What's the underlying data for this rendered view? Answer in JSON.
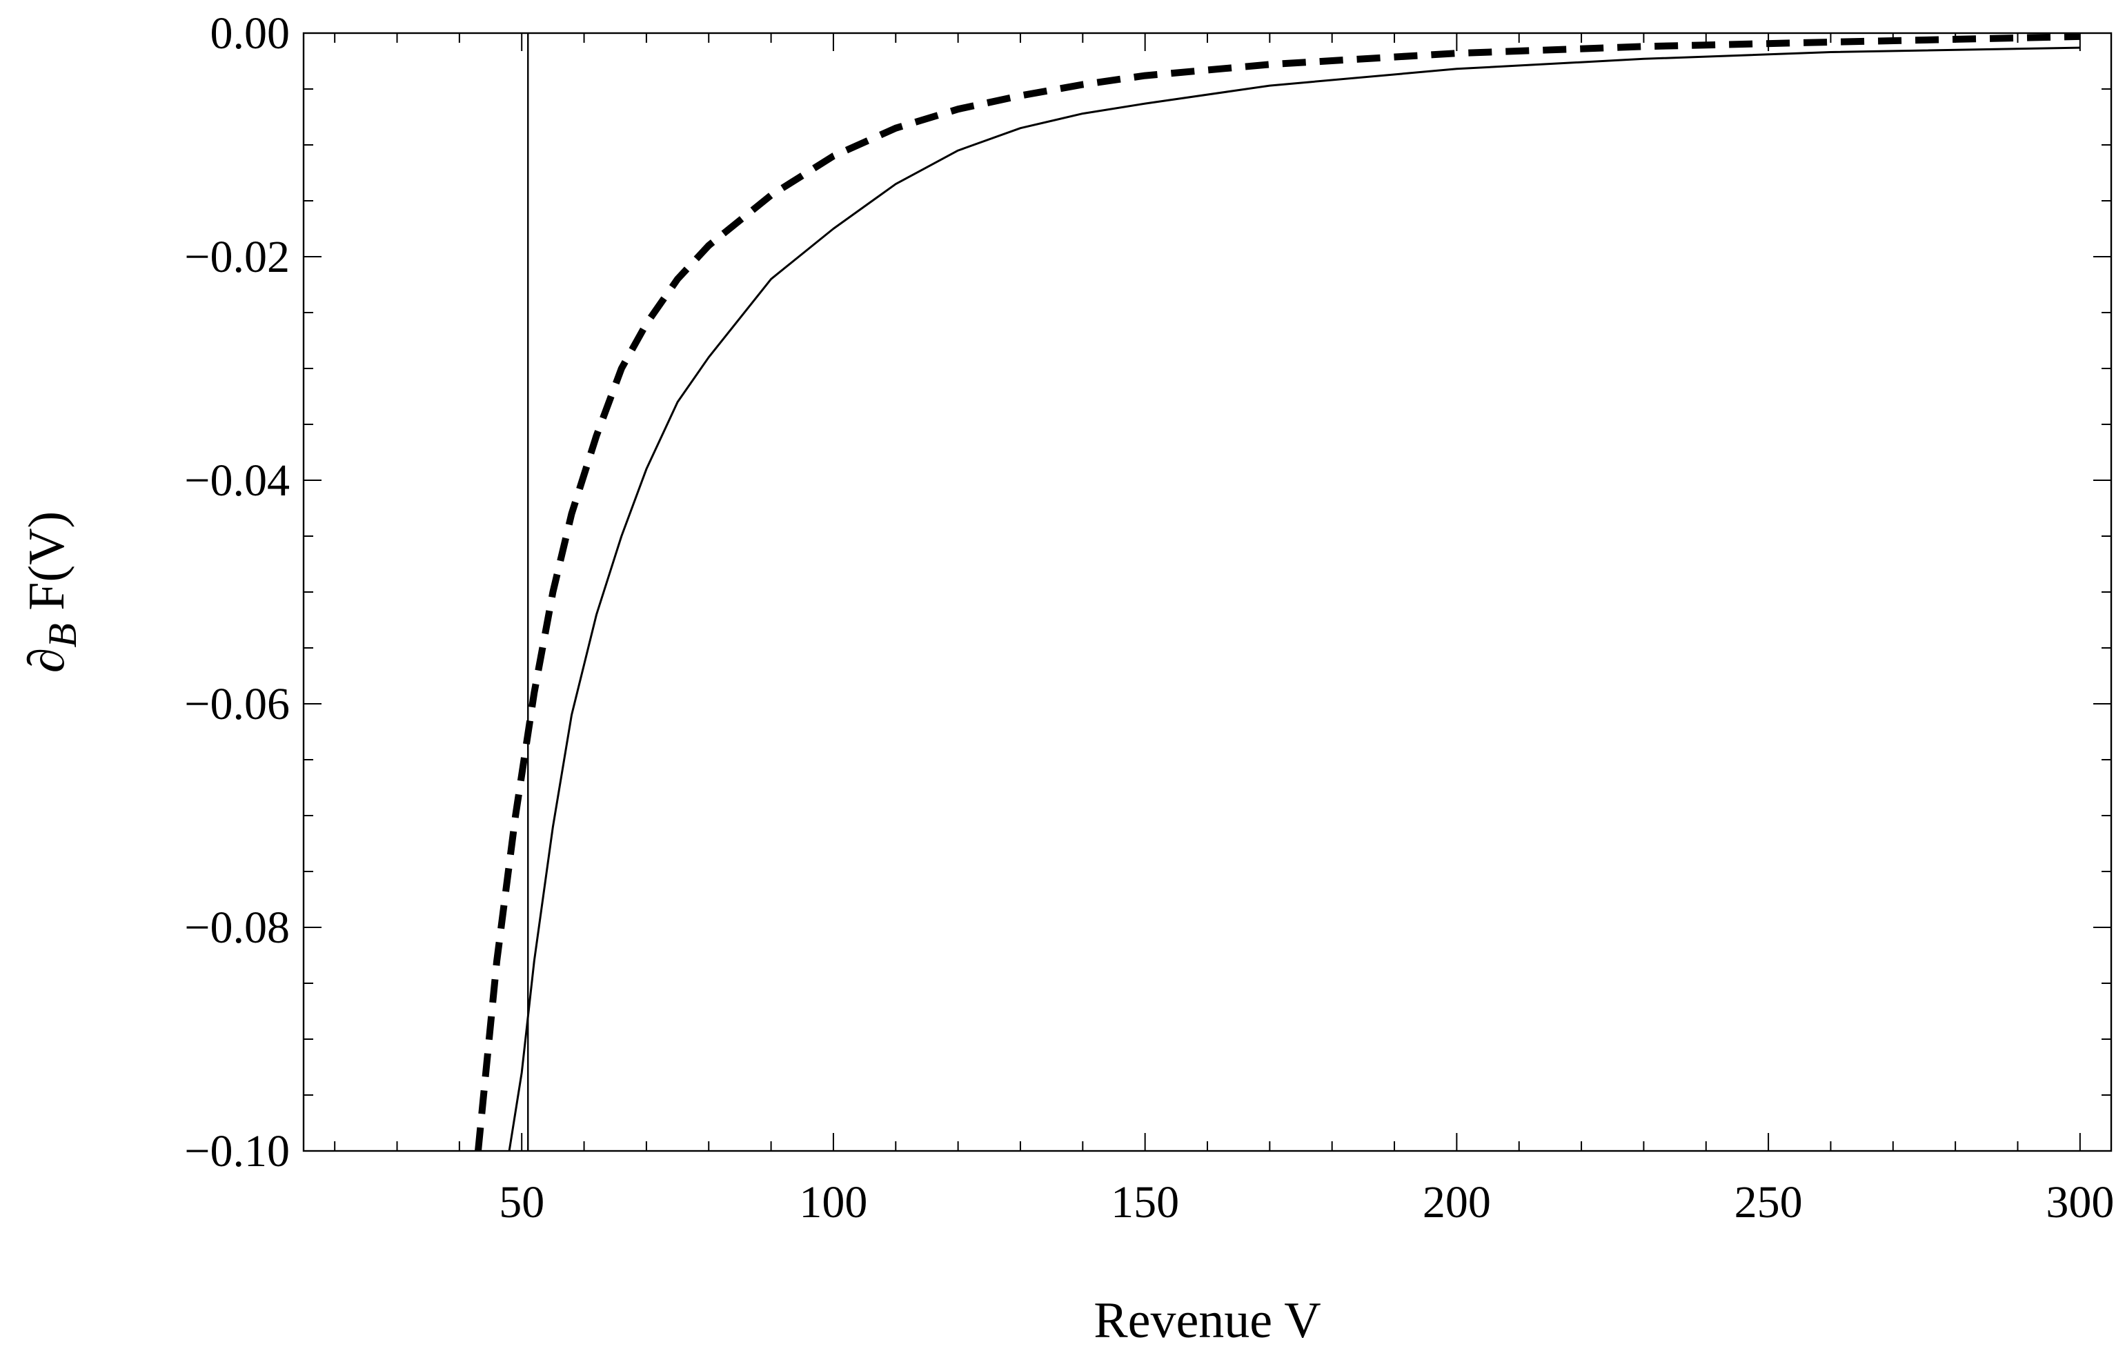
{
  "chart_data": {
    "type": "line",
    "title": "",
    "xlabel": "Revenue V",
    "ylabel": {
      "base": "∂",
      "subscript": "B",
      "rest": " F(V)"
    },
    "xlim": [
      15,
      305
    ],
    "ylim": [
      -0.1,
      0.0
    ],
    "x_ticks": [
      50,
      100,
      150,
      200,
      250,
      300
    ],
    "x_tick_labels": [
      "50",
      "100",
      "150",
      "200",
      "250",
      "300"
    ],
    "x_minor_step": 10,
    "y_ticks": [
      0.0,
      -0.02,
      -0.04,
      -0.06,
      -0.08,
      -0.1
    ],
    "y_tick_labels": [
      "0.00",
      "−0.02",
      "−0.04",
      "−0.06",
      "−0.08",
      "−0.10"
    ],
    "y_minor_step": 0.005,
    "vertical_reference_line_x": 51,
    "grid": false,
    "series": [
      {
        "style": "solid",
        "color": "#000000",
        "x": [
          48,
          50,
          52,
          55,
          58,
          62,
          66,
          70,
          75,
          80,
          90,
          100,
          110,
          120,
          130,
          140,
          150,
          170,
          200,
          230,
          260,
          300
        ],
        "y": [
          -0.1,
          -0.093,
          -0.083,
          -0.071,
          -0.061,
          -0.052,
          -0.045,
          -0.039,
          -0.033,
          -0.029,
          -0.022,
          -0.0175,
          -0.0135,
          -0.0105,
          -0.0085,
          -0.0072,
          -0.0063,
          -0.0047,
          -0.0032,
          -0.0023,
          -0.0017,
          -0.0013
        ]
      },
      {
        "style": "dashed",
        "color": "#000000",
        "x": [
          43,
          46,
          49,
          52,
          55,
          58,
          62,
          66,
          70,
          75,
          80,
          90,
          100,
          110,
          120,
          130,
          140,
          150,
          170,
          200,
          230,
          260,
          300
        ],
        "y": [
          -0.1,
          -0.083,
          -0.07,
          -0.059,
          -0.05,
          -0.043,
          -0.036,
          -0.03,
          -0.026,
          -0.022,
          -0.019,
          -0.0145,
          -0.011,
          -0.0085,
          -0.0068,
          -0.0056,
          -0.0046,
          -0.0038,
          -0.0028,
          -0.0018,
          -0.0012,
          -0.0008,
          -0.0003
        ]
      }
    ]
  }
}
